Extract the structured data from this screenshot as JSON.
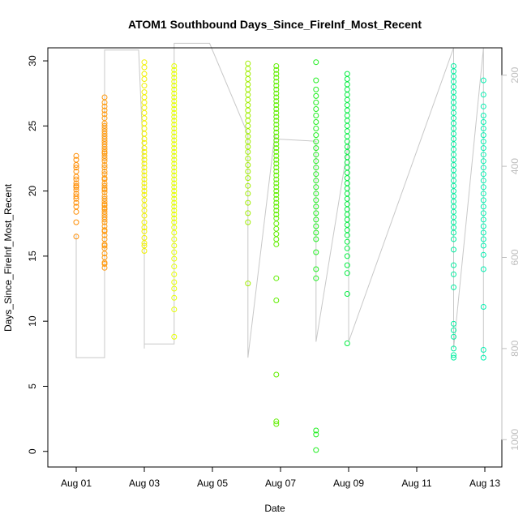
{
  "chart_data": {
    "type": "scatter",
    "title": "ATOM1 Southbound Days_Since_FireInf_Most_Recent",
    "xlabel": "Date",
    "ylabel": "Days_Since_FireInf_Most_Recent",
    "x_tick_labels": [
      "Aug 01",
      "Aug 03",
      "Aug 05",
      "Aug 07",
      "Aug 09",
      "Aug 11",
      "Aug 13"
    ],
    "y_tick_labels": [
      "0",
      "5",
      "10",
      "15",
      "20",
      "25",
      "30"
    ],
    "y2_tick_labels": [
      "200",
      "400",
      "600",
      "800",
      "1000"
    ],
    "xlim": [
      "2012-07-31T04:00",
      "2012-08-13T12:00"
    ],
    "ylim": [
      -1.2,
      31
    ],
    "y2lim": [
      1060,
      140
    ],
    "grid": false,
    "colors": {
      "line": "#c8c8c8",
      "axis": "#000000",
      "right_axis": "#bdbdbd",
      "aug01": "#ff8c00",
      "aug01_late": "#ff9a10",
      "aug03": "#f0f000",
      "aug03_late": "#e6ff00",
      "aug06": "#a0ee00",
      "aug07": "#60ee00",
      "aug08": "#20ee20",
      "aug09": "#00ee40",
      "aug12": "#00eea0",
      "aug13": "#00f0b0"
    },
    "series": [
      {
        "color": "aug01",
        "x": "2012-08-01T00:00",
        "values": [
          16.5,
          17.6,
          18.4,
          18.8,
          19.1,
          19.4,
          19.6,
          19.8,
          20.1,
          20.3,
          20.4,
          20.6,
          20.9,
          21.1,
          21.5,
          21.8,
          22.0,
          22.4,
          22.7
        ]
      },
      {
        "color": "aug01_late",
        "x": "2012-08-01T20:00",
        "values": [
          14.1,
          14.4,
          14.5,
          14.9,
          15.2,
          15.6,
          15.8,
          15.9,
          16.3,
          16.6,
          16.9,
          17.0,
          17.3,
          17.6,
          17.8,
          18.0,
          18.2,
          18.4,
          18.6,
          18.7,
          18.9,
          19.0,
          19.2,
          19.4,
          19.6,
          19.9,
          20.1,
          20.2,
          20.4,
          20.6,
          20.9,
          21.0,
          21.3,
          21.5,
          21.8,
          22.0,
          22.3,
          22.5,
          22.7,
          22.9,
          23.0,
          23.2,
          23.4,
          23.6,
          23.8,
          24.0,
          24.2,
          24.4,
          24.6,
          24.8,
          25.0,
          25.2,
          25.6,
          25.9,
          26.2,
          26.5,
          26.8,
          27.2
        ]
      },
      {
        "color": "aug03",
        "x": "2012-08-03T00:00",
        "values": [
          15.4,
          15.8,
          16.0,
          16.4,
          16.9,
          17.2,
          17.6,
          18.1,
          18.5,
          18.9,
          19.3,
          19.7,
          20.0,
          20.3,
          20.6,
          20.9,
          21.2,
          21.5,
          21.8,
          22.1,
          22.4,
          22.7,
          23.0,
          23.3,
          23.7,
          24.0,
          24.4,
          24.8,
          25.2,
          25.6,
          26.0,
          26.4,
          26.8,
          27.2,
          27.6,
          28.1,
          28.6,
          29.0,
          29.5,
          29.9
        ]
      },
      {
        "color": "aug03_late",
        "x": "2012-08-03T21:00",
        "values": [
          8.8,
          10.9,
          11.8,
          12.5,
          13.0,
          13.6,
          14.2,
          14.8,
          15.3,
          15.8,
          16.3,
          16.8,
          17.2,
          17.6,
          17.9,
          18.2,
          18.5,
          18.8,
          19.1,
          19.4,
          19.7,
          20.0,
          20.3,
          20.6,
          20.9,
          21.2,
          21.5,
          21.8,
          22.1,
          22.4,
          22.7,
          23.0,
          23.3,
          23.6,
          23.9,
          24.2,
          24.5,
          24.8,
          25.1,
          25.4,
          25.7,
          26.0,
          26.3,
          26.6,
          26.9,
          27.2,
          27.5,
          27.8,
          28.1,
          28.4,
          28.7,
          29.0,
          29.3,
          29.6
        ]
      },
      {
        "color": "aug06",
        "x": "2012-08-06T01:00",
        "values": [
          12.9,
          17.6,
          18.3,
          19.1,
          19.8,
          20.4,
          21.0,
          21.5,
          22.0,
          22.5,
          23.0,
          23.4,
          23.8,
          24.2,
          24.6,
          25.0,
          25.4,
          25.8,
          26.2,
          26.6,
          27.0,
          27.4,
          27.8,
          28.2,
          28.6,
          29.0,
          29.4,
          29.8
        ]
      },
      {
        "color": "aug07",
        "x": "2012-08-06T21:00",
        "values": [
          2.1,
          2.3,
          5.9,
          11.6,
          13.3,
          15.9,
          16.3,
          16.7,
          17.1,
          17.5,
          17.9,
          18.2,
          18.5,
          18.8,
          19.1,
          19.4,
          19.7,
          20.0,
          20.3,
          20.6,
          20.9,
          21.2,
          21.5,
          21.8,
          22.1,
          22.4,
          22.7,
          23.0,
          23.3,
          23.6,
          23.9,
          24.2,
          24.5,
          24.8,
          25.1,
          25.4,
          25.7,
          26.0,
          26.3,
          26.6,
          26.9,
          27.2,
          27.5,
          27.8,
          28.1,
          28.4,
          28.7,
          29.0,
          29.3,
          29.6
        ]
      },
      {
        "color": "aug08",
        "x": "2012-08-08T01:00",
        "values": [
          0.1,
          1.3,
          1.6,
          13.3,
          14.0,
          15.3,
          16.3,
          16.8,
          17.3,
          17.8,
          18.3,
          18.8,
          19.3,
          19.8,
          20.3,
          20.8,
          21.3,
          21.8,
          22.3,
          22.8,
          23.3,
          23.8,
          24.3,
          24.8,
          25.3,
          25.8,
          26.3,
          26.8,
          27.3,
          27.8,
          28.5,
          29.9
        ]
      },
      {
        "color": "aug09",
        "x": "2012-08-08T23:00",
        "values": [
          8.3,
          12.1,
          13.7,
          14.3,
          15.0,
          15.6,
          16.1,
          16.6,
          17.0,
          17.4,
          17.8,
          18.2,
          18.6,
          19.0,
          19.4,
          19.8,
          20.2,
          20.6,
          21.0,
          21.4,
          21.8,
          22.2,
          22.6,
          23.0,
          23.4,
          23.8,
          24.2,
          24.6,
          25.0,
          25.4,
          25.8,
          26.2,
          26.6,
          27.0,
          27.4,
          27.8,
          28.2,
          28.6,
          29.0
        ]
      },
      {
        "color": "aug12",
        "x": "2012-08-12T02:00",
        "values": [
          7.2,
          7.4,
          7.9,
          8.8,
          9.3,
          9.8,
          12.6,
          13.6,
          14.3,
          15.5,
          16.3,
          16.8,
          17.2,
          17.6,
          18.0,
          18.4,
          18.8,
          19.2,
          19.6,
          20.0,
          20.4,
          20.8,
          21.2,
          21.6,
          22.0,
          22.4,
          22.8,
          23.2,
          23.6,
          24.0,
          24.4,
          24.8,
          25.2,
          25.6,
          26.0,
          26.4,
          26.8,
          27.2,
          27.6,
          28.0,
          28.4,
          28.8,
          29.2,
          29.6
        ]
      },
      {
        "color": "aug13",
        "x": "2012-08-12T23:00",
        "values": [
          7.2,
          7.8,
          11.1,
          14.0,
          15.1,
          15.8,
          16.3,
          16.8,
          17.3,
          17.8,
          18.3,
          18.8,
          19.3,
          19.8,
          20.3,
          20.8,
          21.3,
          21.8,
          22.3,
          22.8,
          23.3,
          23.8,
          24.3,
          24.8,
          25.3,
          25.8,
          26.5,
          27.4,
          28.5
        ]
      }
    ],
    "line": {
      "x": [
        "2012-08-01T00:00",
        "2012-08-01T00:00",
        "2012-08-01T20:00",
        "2012-08-01T20:00",
        "2012-08-01T20:00",
        "2012-08-02T20:00",
        "2012-08-03T00:00",
        "2012-08-03T00:00",
        "2012-08-03T00:00",
        "2012-08-03T21:00",
        "2012-08-03T21:00",
        "2012-08-03T21:00",
        "2012-08-04T22:00",
        "2012-08-06T01:00",
        "2012-08-06T01:00",
        "2012-08-06T20:00",
        "2012-08-06T20:00",
        "2012-08-08T01:00",
        "2012-08-08T01:00",
        "2012-08-09T00:00",
        "2012-08-09T00:00",
        "2012-08-12T02:00",
        "2012-08-12T02:00",
        "2012-08-12T23:00",
        "2012-08-12T23:00"
      ],
      "y2": [
        550,
        820,
        820,
        380,
        145,
        145,
        430,
        800,
        790,
        790,
        380,
        130,
        130,
        330,
        820,
        330,
        340,
        345,
        785,
        345,
        785,
        140,
        800,
        140,
        820
      ]
    }
  }
}
